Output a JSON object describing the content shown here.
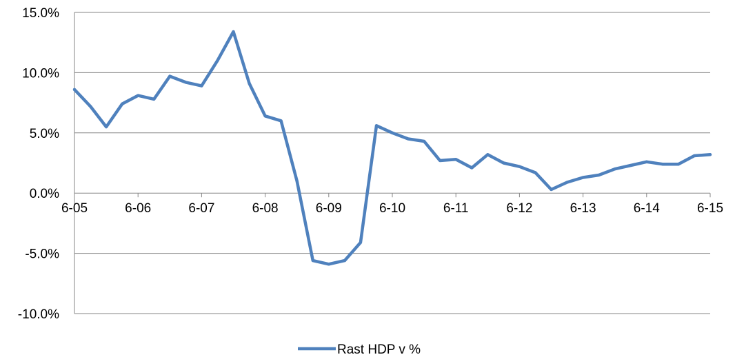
{
  "chart_data": {
    "type": "line",
    "title": "",
    "xlabel": "",
    "ylabel": "",
    "ylim": [
      -10,
      15
    ],
    "y_ticks": [
      "15.0%",
      "10.0%",
      "5.0%",
      "0.0%",
      "-5.0%",
      "-10.0%"
    ],
    "y_tick_values": [
      15,
      10,
      5,
      0,
      -5,
      -10
    ],
    "x_tick_labels": [
      "6-05",
      "6-06",
      "6-07",
      "6-08",
      "6-09",
      "6-10",
      "6-11",
      "6-12",
      "6-13",
      "6-14",
      "6-15"
    ],
    "grid": true,
    "legend_position": "bottom",
    "series": [
      {
        "name": "Rast HDP v %",
        "color": "#4F81BD",
        "values": [
          8.6,
          7.2,
          5.5,
          7.4,
          8.1,
          7.8,
          9.7,
          9.2,
          8.9,
          11.0,
          13.4,
          9.1,
          6.4,
          6.0,
          1.0,
          -5.6,
          -5.9,
          -5.6,
          -4.1,
          5.6,
          5.0,
          4.5,
          4.3,
          2.7,
          2.8,
          2.1,
          3.2,
          2.5,
          2.2,
          1.7,
          0.3,
          0.9,
          1.3,
          1.5,
          2.0,
          2.3,
          2.6,
          2.4,
          2.4,
          3.1,
          3.2
        ]
      }
    ]
  }
}
